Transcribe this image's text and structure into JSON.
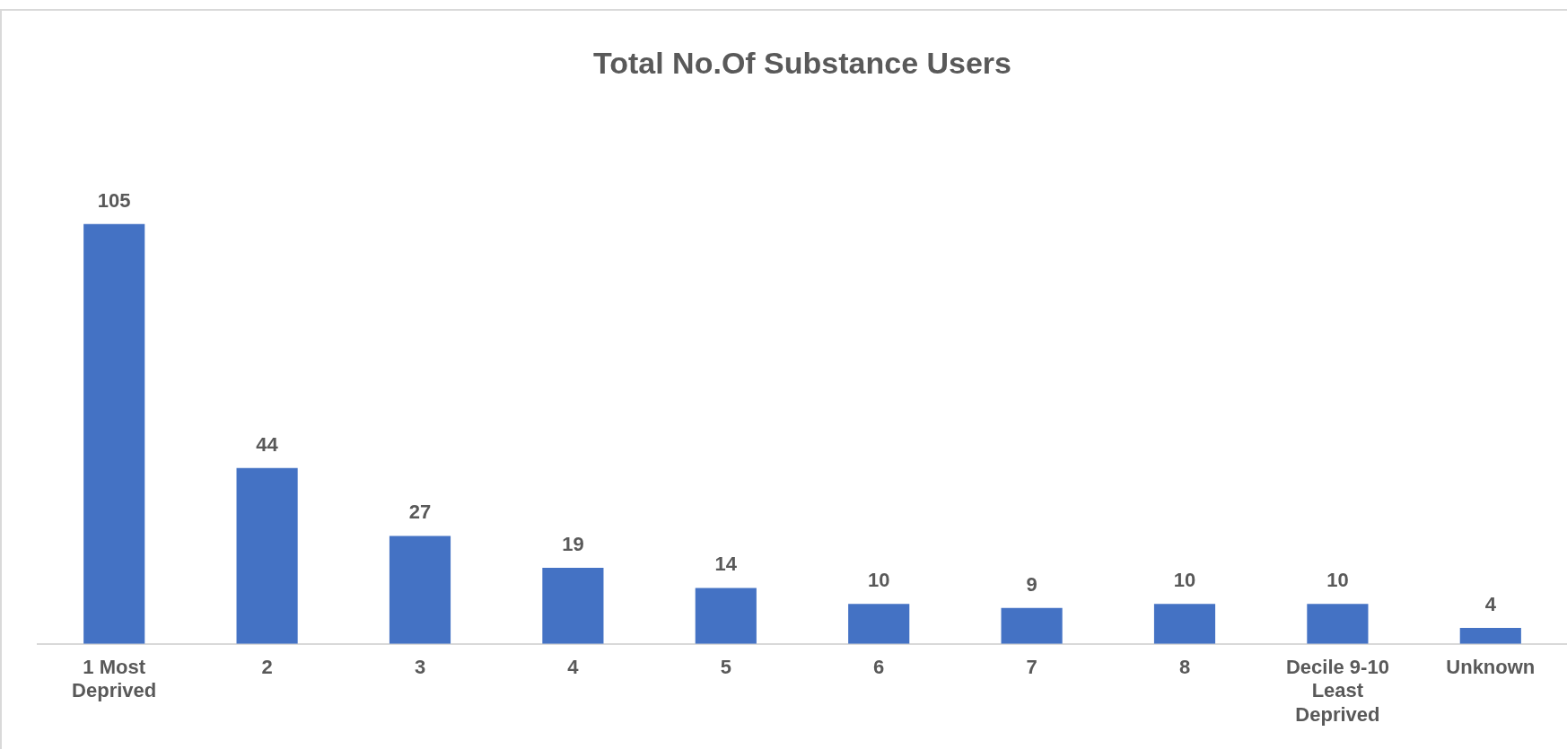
{
  "chart_data": {
    "type": "bar",
    "title": "Total No.Of Substance Users",
    "categories": [
      "1 Most Deprived",
      "2",
      "3",
      "4",
      "5",
      "6",
      "7",
      "8",
      "Decile 9-10 Least Deprived",
      "Unknown"
    ],
    "values": [
      105,
      44,
      27,
      19,
      14,
      10,
      9,
      10,
      10,
      4
    ],
    "color": "#4472c4",
    "data_labels": true,
    "grid": false,
    "legend": false
  }
}
